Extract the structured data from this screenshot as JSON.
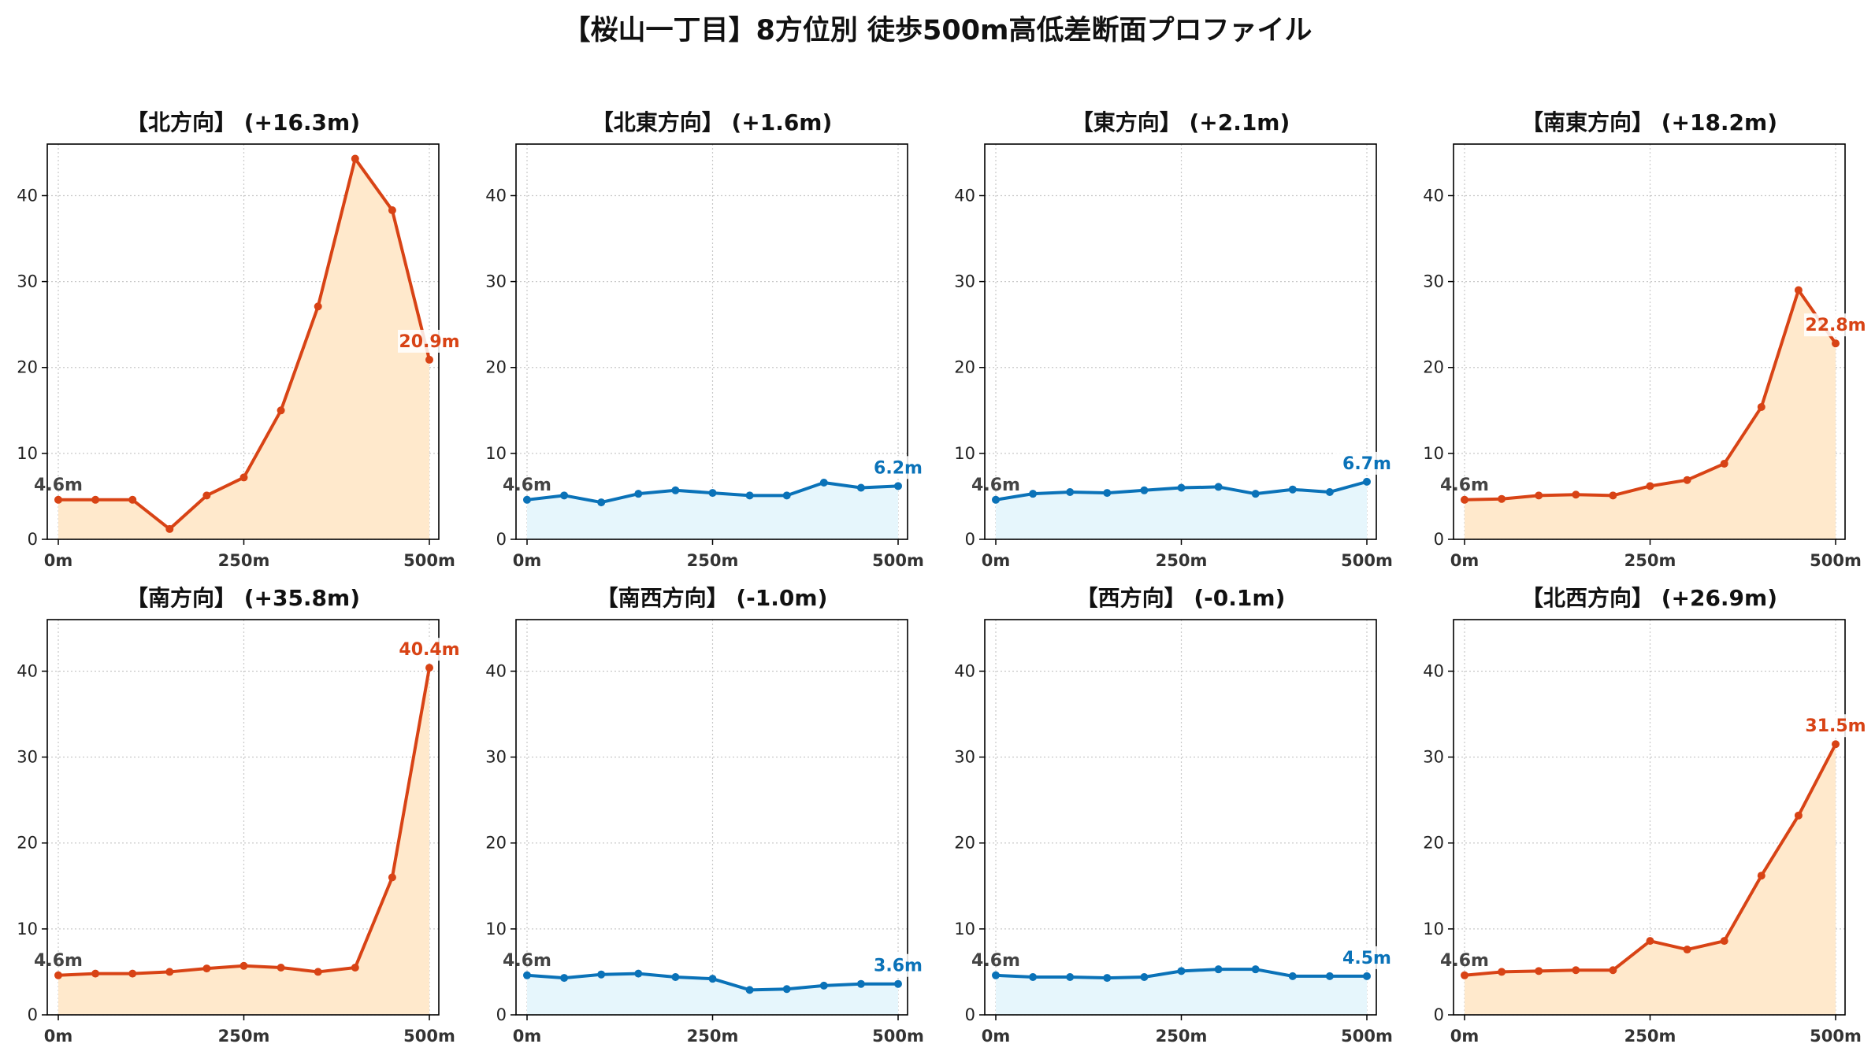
{
  "title": "【桜山一丁目】8方位別 徒歩500m高低差断面プロファイル",
  "colors": {
    "up": "#d84315",
    "up_fill": "#ffe9cc",
    "down": "#0a72b8",
    "down_fill": "#e6f6fc",
    "grid": "#c8c8c8"
  },
  "chart_data": [
    {
      "type": "area",
      "title": "【北方向】 (+16.3m)",
      "x": [
        0,
        50,
        100,
        150,
        200,
        250,
        300,
        350,
        400,
        450,
        500
      ],
      "y": [
        4.6,
        4.6,
        4.6,
        1.2,
        5.1,
        7.2,
        15.0,
        27.1,
        44.3,
        38.3,
        20.9
      ],
      "trend": "up",
      "start_label": "4.6m",
      "end_label": "20.9m",
      "xticks": [
        "0m",
        "250m",
        "500m"
      ],
      "yticks": [
        0,
        10,
        20,
        30,
        40
      ],
      "ylim": [
        0,
        46
      ],
      "grid": true
    },
    {
      "type": "area",
      "title": "【北東方向】 (+1.6m)",
      "x": [
        0,
        50,
        100,
        150,
        200,
        250,
        300,
        350,
        400,
        450,
        500
      ],
      "y": [
        4.6,
        5.1,
        4.3,
        5.3,
        5.7,
        5.4,
        5.1,
        5.1,
        6.6,
        6.0,
        6.2
      ],
      "trend": "down",
      "start_label": "4.6m",
      "end_label": "6.2m",
      "xticks": [
        "0m",
        "250m",
        "500m"
      ],
      "yticks": [
        0,
        10,
        20,
        30,
        40
      ],
      "ylim": [
        0,
        46
      ],
      "grid": true
    },
    {
      "type": "area",
      "title": "【東方向】 (+2.1m)",
      "x": [
        0,
        50,
        100,
        150,
        200,
        250,
        300,
        350,
        400,
        450,
        500
      ],
      "y": [
        4.6,
        5.3,
        5.5,
        5.4,
        5.7,
        6.0,
        6.1,
        5.3,
        5.8,
        5.5,
        6.7
      ],
      "trend": "down",
      "start_label": "4.6m",
      "end_label": "6.7m",
      "xticks": [
        "0m",
        "250m",
        "500m"
      ],
      "yticks": [
        0,
        10,
        20,
        30,
        40
      ],
      "ylim": [
        0,
        46
      ],
      "grid": true
    },
    {
      "type": "area",
      "title": "【南東方向】 (+18.2m)",
      "x": [
        0,
        50,
        100,
        150,
        200,
        250,
        300,
        350,
        400,
        450,
        500
      ],
      "y": [
        4.6,
        4.7,
        5.1,
        5.2,
        5.1,
        6.2,
        6.9,
        8.8,
        15.4,
        29.0,
        22.8
      ],
      "trend": "up",
      "start_label": "4.6m",
      "end_label": "22.8m",
      "xticks": [
        "0m",
        "250m",
        "500m"
      ],
      "yticks": [
        0,
        10,
        20,
        30,
        40
      ],
      "ylim": [
        0,
        46
      ],
      "grid": true
    },
    {
      "type": "area",
      "title": "【南方向】 (+35.8m)",
      "x": [
        0,
        50,
        100,
        150,
        200,
        250,
        300,
        350,
        400,
        450,
        500
      ],
      "y": [
        4.6,
        4.8,
        4.8,
        5.0,
        5.4,
        5.7,
        5.5,
        5.0,
        5.5,
        16.0,
        40.4
      ],
      "trend": "up",
      "start_label": "4.6m",
      "end_label": "40.4m",
      "xticks": [
        "0m",
        "250m",
        "500m"
      ],
      "yticks": [
        0,
        10,
        20,
        30,
        40
      ],
      "ylim": [
        0,
        46
      ],
      "grid": true
    },
    {
      "type": "area",
      "title": "【南西方向】 (-1.0m)",
      "x": [
        0,
        50,
        100,
        150,
        200,
        250,
        300,
        350,
        400,
        450,
        500
      ],
      "y": [
        4.6,
        4.3,
        4.7,
        4.8,
        4.4,
        4.2,
        2.9,
        3.0,
        3.4,
        3.6,
        3.6
      ],
      "trend": "down",
      "start_label": "4.6m",
      "end_label": "3.6m",
      "xticks": [
        "0m",
        "250m",
        "500m"
      ],
      "yticks": [
        0,
        10,
        20,
        30,
        40
      ],
      "ylim": [
        0,
        46
      ],
      "grid": true
    },
    {
      "type": "area",
      "title": "【西方向】 (-0.1m)",
      "x": [
        0,
        50,
        100,
        150,
        200,
        250,
        300,
        350,
        400,
        450,
        500
      ],
      "y": [
        4.6,
        4.4,
        4.4,
        4.3,
        4.4,
        5.1,
        5.3,
        5.3,
        4.5,
        4.5,
        4.5
      ],
      "trend": "down",
      "start_label": "4.6m",
      "end_label": "4.5m",
      "xticks": [
        "0m",
        "250m",
        "500m"
      ],
      "yticks": [
        0,
        10,
        20,
        30,
        40
      ],
      "ylim": [
        0,
        46
      ],
      "grid": true
    },
    {
      "type": "area",
      "title": "【北西方向】 (+26.9m)",
      "x": [
        0,
        50,
        100,
        150,
        200,
        250,
        300,
        350,
        400,
        450,
        500
      ],
      "y": [
        4.6,
        5.0,
        5.1,
        5.2,
        5.2,
        8.6,
        7.6,
        8.6,
        16.2,
        23.2,
        31.5
      ],
      "trend": "up",
      "start_label": "4.6m",
      "end_label": "31.5m",
      "xticks": [
        "0m",
        "250m",
        "500m"
      ],
      "yticks": [
        0,
        10,
        20,
        30,
        40
      ],
      "ylim": [
        0,
        46
      ],
      "grid": true
    }
  ]
}
